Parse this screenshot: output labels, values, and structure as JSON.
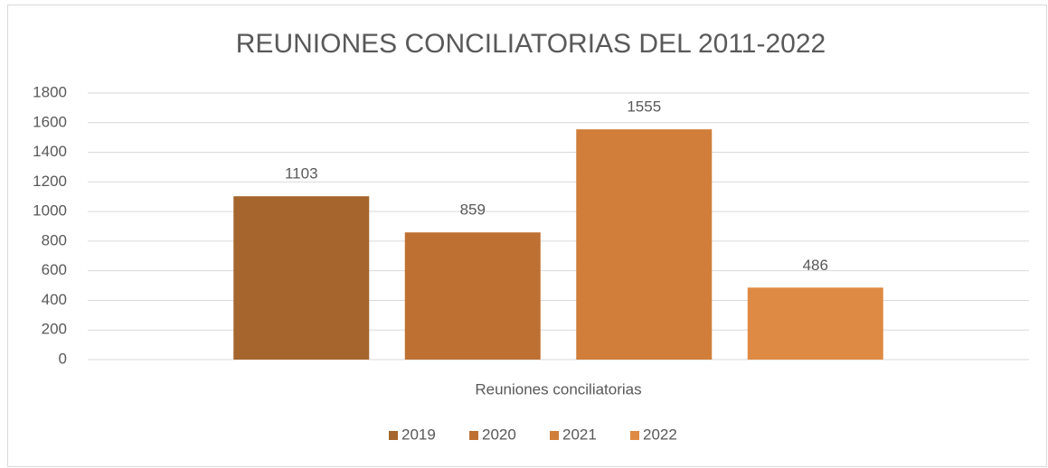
{
  "chart_data": {
    "type": "bar",
    "title": "REUNIONES CONCILIATORIAS DEL 2011-2022",
    "categories": [
      "Reuniones conciliatorias"
    ],
    "series": [
      {
        "name": "2019",
        "color": "#a5652d",
        "values": [
          1103
        ]
      },
      {
        "name": "2020",
        "color": "#be7033",
        "values": [
          859
        ]
      },
      {
        "name": "2021",
        "color": "#d07e3a",
        "values": [
          1555
        ]
      },
      {
        "name": "2022",
        "color": "#df8a44",
        "values": [
          486
        ]
      }
    ],
    "ylim": [
      0,
      1800
    ],
    "yticks": [
      0,
      200,
      400,
      600,
      800,
      1000,
      1200,
      1400,
      1600,
      1800
    ],
    "grid": true,
    "legend": "bottom"
  }
}
